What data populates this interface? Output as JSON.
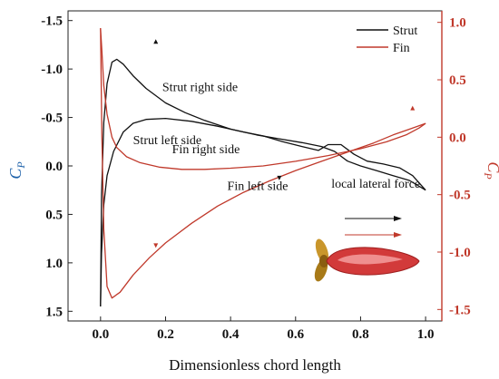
{
  "chart_data": {
    "type": "line",
    "title": "",
    "xlabel": "Dimensionless chord length",
    "ylabel_left": {
      "symbol": "C",
      "sub": "P"
    },
    "ylabel_right": {
      "symbol": "C",
      "sub": "P"
    },
    "xlim": [
      -0.1,
      1.05
    ],
    "ylim_left": [
      1.6,
      -1.6
    ],
    "ylim_right": [
      -1.6,
      1.1
    ],
    "x_ticks": [
      "0.0",
      "0.2",
      "0.4",
      "0.6",
      "0.8",
      "1.0"
    ],
    "y_left_ticks": [
      "-1.5",
      "-1.0",
      "-0.5",
      "0.0",
      "0.5",
      "1.0",
      "1.5"
    ],
    "y_right_ticks": [
      "1.0",
      "0.5",
      "0.0",
      "-0.5",
      "-1.0",
      "-1.5"
    ],
    "legend_position": "top-right",
    "colors": {
      "strut": "#111111",
      "fin": "#c0392b",
      "left_axis": "#111111",
      "right_axis": "#c0392b",
      "cp_left": "#1a5fa8"
    },
    "series": [
      {
        "name": "Strut",
        "axis": "left",
        "color": "#111111",
        "segments": [
          {
            "label": "Strut right side",
            "x": [
              0.0,
              0.003,
              0.01,
              0.02,
              0.035,
              0.05,
              0.07,
              0.1,
              0.14,
              0.2,
              0.26,
              0.32,
              0.4,
              0.48,
              0.55,
              0.62,
              0.68,
              0.72,
              0.76,
              0.8,
              0.85,
              0.9,
              0.95,
              1.0
            ],
            "y": [
              1.45,
              0.3,
              -0.45,
              -0.85,
              -1.07,
              -1.1,
              -1.05,
              -0.93,
              -0.8,
              -0.65,
              -0.55,
              -0.47,
              -0.38,
              -0.32,
              -0.28,
              -0.24,
              -0.2,
              -0.15,
              -0.05,
              0.0,
              0.05,
              0.1,
              0.15,
              0.25
            ]
          },
          {
            "label": "Strut left side",
            "x": [
              0.0,
              0.003,
              0.01,
              0.02,
              0.04,
              0.07,
              0.1,
              0.14,
              0.2,
              0.28,
              0.36,
              0.44,
              0.5,
              0.56,
              0.62,
              0.67,
              0.7,
              0.74,
              0.78,
              0.82,
              0.87,
              0.92,
              0.96,
              1.0
            ],
            "y": [
              1.45,
              0.9,
              0.4,
              0.1,
              -0.15,
              -0.35,
              -0.44,
              -0.48,
              -0.49,
              -0.46,
              -0.41,
              -0.35,
              -0.31,
              -0.25,
              -0.2,
              -0.16,
              -0.22,
              -0.22,
              -0.12,
              -0.05,
              -0.02,
              0.02,
              0.1,
              0.25
            ]
          }
        ]
      },
      {
        "name": "Fin",
        "axis": "right",
        "color": "#c0392b",
        "segments": [
          {
            "label": "Fin right side",
            "x": [
              0.0,
              0.004,
              0.01,
              0.02,
              0.035,
              0.05,
              0.08,
              0.12,
              0.18,
              0.25,
              0.32,
              0.4,
              0.5,
              0.6,
              0.7,
              0.8,
              0.88,
              0.94,
              0.98,
              1.0
            ],
            "y": [
              0.95,
              0.75,
              0.45,
              0.2,
              0.0,
              -0.09,
              -0.17,
              -0.22,
              -0.26,
              -0.28,
              -0.28,
              -0.27,
              -0.25,
              -0.21,
              -0.16,
              -0.1,
              -0.04,
              0.02,
              0.08,
              0.12
            ]
          },
          {
            "label": "Fin left side",
            "x": [
              0.0,
              0.004,
              0.01,
              0.02,
              0.035,
              0.06,
              0.1,
              0.15,
              0.2,
              0.28,
              0.36,
              0.44,
              0.52,
              0.6,
              0.68,
              0.76,
              0.84,
              0.9,
              0.95,
              1.0
            ],
            "y": [
              0.95,
              0.0,
              -0.8,
              -1.3,
              -1.4,
              -1.35,
              -1.2,
              -1.05,
              -0.92,
              -0.75,
              -0.6,
              -0.48,
              -0.38,
              -0.29,
              -0.21,
              -0.13,
              -0.05,
              0.02,
              0.07,
              0.12
            ]
          }
        ]
      }
    ],
    "annotations": [
      {
        "text": "Strut right side",
        "x": 0.19,
        "y": -0.82,
        "axis": "left"
      },
      {
        "text": "Strut left side",
        "x": 0.1,
        "y": -0.27,
        "axis": "left"
      },
      {
        "text": "Fin right side",
        "x": 0.22,
        "y": -0.1,
        "axis": "right"
      },
      {
        "text": "Fin left side",
        "x": 0.39,
        "y": -0.42,
        "axis": "right"
      },
      {
        "text": "local lateral force",
        "x": 0.71,
        "y": -0.4,
        "axis": "right"
      }
    ],
    "markers": [
      {
        "x": 0.17,
        "y": -1.28,
        "axis": "left",
        "color": "#111111",
        "dir": "up"
      },
      {
        "x": 0.55,
        "y": 0.12,
        "axis": "left",
        "color": "#111111",
        "dir": "down"
      },
      {
        "x": 0.17,
        "y": -0.94,
        "axis": "right",
        "color": "#c0392b",
        "dir": "down"
      },
      {
        "x": 0.96,
        "y": 0.25,
        "axis": "right",
        "color": "#c0392b",
        "dir": "up"
      }
    ]
  }
}
